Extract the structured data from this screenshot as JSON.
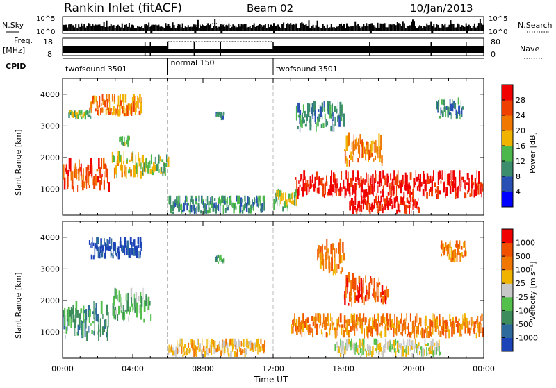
{
  "header": {
    "station": "Rankin Inlet (fitACF)",
    "beam": "Beam 02",
    "date": "10/Jan/2013"
  },
  "noise_panel": {
    "left_label": "N.Sky",
    "right_label": "N.Search",
    "ticks_left": [
      "10^5",
      "10^0"
    ],
    "ticks_right": [
      "10^5",
      "10^0"
    ]
  },
  "freq_panel": {
    "left_label_1": "Freq.",
    "left_label_2": "[MHz]",
    "right_label": "Nave",
    "ticks_left": [
      "18",
      "8"
    ],
    "ticks_right": [
      "80",
      "0"
    ]
  },
  "cpid": {
    "label": "CPID",
    "segments": [
      {
        "name": "twofsound 3501",
        "start_h": 0,
        "end_h": 6
      },
      {
        "name": "normal 150",
        "start_h": 6,
        "end_h": 12
      },
      {
        "name": "twofsound 3501",
        "start_h": 12,
        "end_h": 24
      }
    ]
  },
  "chart_data": [
    {
      "type": "heatmap",
      "panel": "power",
      "ylabel": "Slant Range [km]",
      "xlabel": "",
      "xlim": [
        0,
        24
      ],
      "ylim": [
        180,
        4500
      ],
      "yticks": [
        1000,
        2000,
        3000,
        4000
      ],
      "colorbar": {
        "label": "Power [dB]",
        "ticks": [
          4,
          8,
          12,
          16,
          20,
          24,
          28
        ],
        "colors": [
          "#0000ff",
          "#2850b4",
          "#3c8c6e",
          "#4cb84c",
          "#f0b400",
          "#f07800",
          "#f04000",
          "#f00000"
        ]
      },
      "regions": [
        {
          "t0": 0.0,
          "t1": 2.6,
          "r0": 900,
          "r1": 2000,
          "level": 6
        },
        {
          "t0": 1.5,
          "t1": 4.5,
          "r0": 3300,
          "r1": 4000,
          "level": 5
        },
        {
          "t0": 0.3,
          "t1": 1.6,
          "r0": 3200,
          "r1": 3500,
          "level": 3
        },
        {
          "t0": 2.8,
          "t1": 4.6,
          "r0": 1300,
          "r1": 2200,
          "level": 4
        },
        {
          "t0": 4.5,
          "t1": 6.0,
          "r0": 1400,
          "r1": 2100,
          "level": 3
        },
        {
          "t0": 3.2,
          "t1": 3.8,
          "r0": 2300,
          "r1": 2700,
          "level": 3
        },
        {
          "t0": 6.0,
          "t1": 11.5,
          "r0": 200,
          "r1": 800,
          "level": 2
        },
        {
          "t0": 8.7,
          "t1": 9.2,
          "r0": 3150,
          "r1": 3450,
          "level": 2
        },
        {
          "t0": 13.2,
          "t1": 23.9,
          "r0": 700,
          "r1": 1600,
          "level": 7
        },
        {
          "t0": 16.3,
          "t1": 20.3,
          "r0": 200,
          "r1": 800,
          "level": 7
        },
        {
          "t0": 16.0,
          "t1": 18.2,
          "r0": 1700,
          "r1": 2800,
          "level": 5
        },
        {
          "t0": 13.3,
          "t1": 16.0,
          "r0": 2800,
          "r1": 3800,
          "level": 2
        },
        {
          "t0": 21.3,
          "t1": 22.8,
          "r0": 3200,
          "r1": 3900,
          "level": 2
        },
        {
          "t0": 12.0,
          "t1": 13.3,
          "r0": 300,
          "r1": 1000,
          "level": 3
        }
      ]
    },
    {
      "type": "heatmap",
      "panel": "velocity",
      "ylabel": "Slant Range [km]",
      "xlabel": "Time UT",
      "xlim": [
        0,
        24
      ],
      "ylim": [
        180,
        4500
      ],
      "yticks": [
        1000,
        2000,
        3000,
        4000
      ],
      "xticks": [
        "00:00",
        "04:00",
        "08:00",
        "12:00",
        "16:00",
        "20:00",
        "00:00"
      ],
      "colorbar": {
        "label": "Velocity [m s⁻¹]",
        "ticks": [
          1000,
          500,
          100,
          25,
          -25,
          -100,
          -500,
          -1000
        ],
        "colors": [
          "#1c44b8",
          "#2e6a9c",
          "#3c8c5c",
          "#54c04c",
          "#c8c8c8",
          "#f0b400",
          "#f07800",
          "#f05000",
          "#f00000"
        ]
      },
      "regions": [
        {
          "t0": 0.0,
          "t1": 2.6,
          "r0": 700,
          "r1": 2000,
          "level": 2
        },
        {
          "t0": 1.5,
          "t1": 4.5,
          "r0": 3300,
          "r1": 4000,
          "level": 0
        },
        {
          "t0": 2.8,
          "t1": 5.0,
          "r0": 1300,
          "r1": 2400,
          "level": 3
        },
        {
          "t0": 6.0,
          "t1": 11.5,
          "r0": 200,
          "r1": 800,
          "level": 5
        },
        {
          "t0": 8.7,
          "t1": 9.2,
          "r0": 3150,
          "r1": 3450,
          "level": 2
        },
        {
          "t0": 13.0,
          "t1": 23.9,
          "r0": 800,
          "r1": 1600,
          "level": 6
        },
        {
          "t0": 15.5,
          "t1": 21.5,
          "r0": 200,
          "r1": 800,
          "level": 4
        },
        {
          "t0": 16.0,
          "t1": 18.5,
          "r0": 1800,
          "r1": 2900,
          "level": 7
        },
        {
          "t0": 14.5,
          "t1": 16.0,
          "r0": 2800,
          "r1": 4000,
          "level": 6
        },
        {
          "t0": 21.5,
          "t1": 23.0,
          "r0": 3200,
          "r1": 3900,
          "level": 6
        }
      ]
    }
  ]
}
